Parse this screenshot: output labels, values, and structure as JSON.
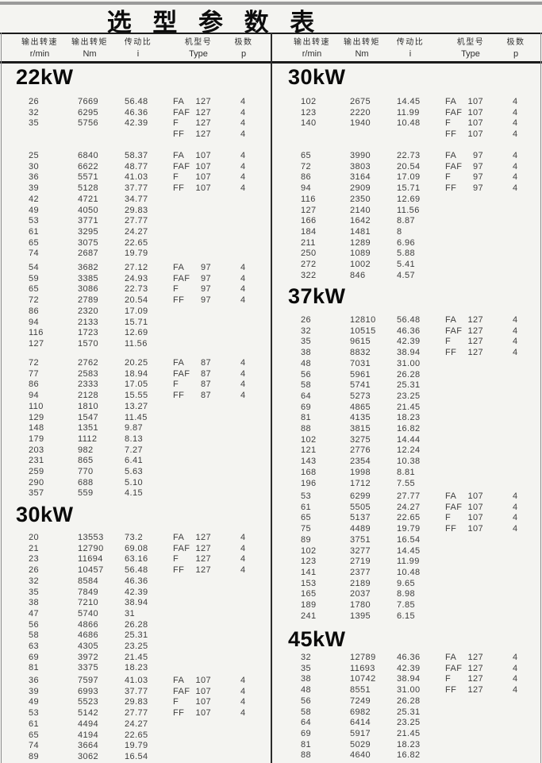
{
  "title": "选 型 参 数 表",
  "header": {
    "columns": [
      {
        "zh": "输出转速",
        "en": "r/min"
      },
      {
        "zh": "输出转矩",
        "en": "Nm"
      },
      {
        "zh": "传动比",
        "en": "i"
      },
      {
        "zh": "机型号",
        "en": "Type"
      },
      {
        "zh": "极数",
        "en": "p"
      }
    ]
  },
  "columns": {
    "left": {
      "sections": [
        {
          "heading": "22kW",
          "blocks": [
            [
              [
                "26",
                "7669",
                "56.48",
                "FA",
                "127",
                "4"
              ],
              [
                "32",
                "6295",
                "46.36",
                "FAF",
                "127",
                "4"
              ],
              [
                "35",
                "5756",
                "42.39",
                "F",
                "127",
                "4"
              ],
              [
                "",
                "",
                "",
                "FF",
                "127",
                "4"
              ]
            ],
            [
              [
                "25",
                "6840",
                "58.37",
                "FA",
                "107",
                "4"
              ],
              [
                "30",
                "6622",
                "48.77",
                "FAF",
                "107",
                "4"
              ],
              [
                "36",
                "5571",
                "41.03",
                "F",
                "107",
                "4"
              ],
              [
                "39",
                "5128",
                "37.77",
                "FF",
                "107",
                "4"
              ],
              [
                "42",
                "4721",
                "34.77",
                "",
                "",
                ""
              ],
              [
                "49",
                "4050",
                "29.83",
                "",
                "",
                ""
              ],
              [
                "53",
                "3771",
                "27.77",
                "",
                "",
                ""
              ],
              [
                "61",
                "3295",
                "24.27",
                "",
                "",
                ""
              ],
              [
                "65",
                "3075",
                "22.65",
                "",
                "",
                ""
              ],
              [
                "74",
                "2687",
                "19.79",
                "",
                "",
                ""
              ]
            ],
            [
              [
                "54",
                "3682",
                "27.12",
                "FA",
                "97",
                "4"
              ],
              [
                "59",
                "3385",
                "24.93",
                "FAF",
                "97",
                "4"
              ],
              [
                "65",
                "3086",
                "22.73",
                "F",
                "97",
                "4"
              ],
              [
                "72",
                "2789",
                "20.54",
                "FF",
                "97",
                "4"
              ],
              [
                "86",
                "2320",
                "17.09",
                "",
                "",
                ""
              ],
              [
                "94",
                "2133",
                "15.71",
                "",
                "",
                ""
              ],
              [
                "116",
                "1723",
                "12.69",
                "",
                "",
                ""
              ],
              [
                "127",
                "1570",
                "11.56",
                "",
                "",
                ""
              ]
            ],
            [
              [
                "72",
                "2762",
                "20.25",
                "FA",
                "87",
                "4"
              ],
              [
                "77",
                "2583",
                "18.94",
                "FAF",
                "87",
                "4"
              ],
              [
                "86",
                "2333",
                "17.05",
                "F",
                "87",
                "4"
              ],
              [
                "94",
                "2128",
                "15.55",
                "FF",
                "87",
                "4"
              ],
              [
                "110",
                "1810",
                "13.27",
                "",
                "",
                ""
              ],
              [
                "129",
                "1547",
                "11.45",
                "",
                "",
                ""
              ],
              [
                "148",
                "1351",
                "9.87",
                "",
                "",
                ""
              ],
              [
                "179",
                "1112",
                "8.13",
                "",
                "",
                ""
              ],
              [
                "203",
                "982",
                "7.27",
                "",
                "",
                ""
              ],
              [
                "231",
                "865",
                "6.41",
                "",
                "",
                ""
              ],
              [
                "259",
                "770",
                "5.63",
                "",
                "",
                ""
              ],
              [
                "290",
                "688",
                "5.10",
                "",
                "",
                ""
              ],
              [
                "357",
                "559",
                "4.15",
                "",
                "",
                ""
              ]
            ]
          ]
        },
        {
          "heading": "30kW",
          "blocks": [
            [
              [
                "20",
                "13553",
                "73.2",
                "FA",
                "127",
                "4"
              ],
              [
                "21",
                "12790",
                "69.08",
                "FAF",
                "127",
                "4"
              ],
              [
                "23",
                "11694",
                "63.16",
                "F",
                "127",
                "4"
              ],
              [
                "26",
                "10457",
                "56.48",
                "FF",
                "127",
                "4"
              ],
              [
                "32",
                "8584",
                "46.36",
                "",
                "",
                ""
              ],
              [
                "35",
                "7849",
                "42.39",
                "",
                "",
                ""
              ],
              [
                "38",
                "7210",
                "38.94",
                "",
                "",
                ""
              ],
              [
                "47",
                "5740",
                "31",
                "",
                "",
                ""
              ],
              [
                "56",
                "4866",
                "26.28",
                "",
                "",
                ""
              ],
              [
                "58",
                "4686",
                "25.31",
                "",
                "",
                ""
              ],
              [
                "63",
                "4305",
                "23.25",
                "",
                "",
                ""
              ],
              [
                "69",
                "3972",
                "21.45",
                "",
                "",
                ""
              ],
              [
                "81",
                "3375",
                "18.23",
                "",
                "",
                ""
              ]
            ],
            [
              [
                "36",
                "7597",
                "41.03",
                "FA",
                "107",
                "4"
              ],
              [
                "39",
                "6993",
                "37.77",
                "FAF",
                "107",
                "4"
              ],
              [
                "49",
                "5523",
                "29.83",
                "F",
                "107",
                "4"
              ],
              [
                "53",
                "5142",
                "27.77",
                "FF",
                "107",
                "4"
              ],
              [
                "61",
                "4494",
                "24.27",
                "",
                "",
                ""
              ],
              [
                "65",
                "4194",
                "22.65",
                "",
                "",
                ""
              ],
              [
                "74",
                "3664",
                "19.79",
                "",
                "",
                ""
              ],
              [
                "89",
                "3062",
                "16.54",
                "",
                "",
                ""
              ]
            ]
          ]
        }
      ]
    },
    "right": {
      "sections": [
        {
          "heading": "30kW",
          "blocks": [
            [
              [
                "102",
                "2675",
                "14.45",
                "FA",
                "107",
                "4"
              ],
              [
                "123",
                "2220",
                "11.99",
                "FAF",
                "107",
                "4"
              ],
              [
                "140",
                "1940",
                "10.48",
                "F",
                "107",
                "4"
              ],
              [
                "",
                "",
                "",
                "FF",
                "107",
                "4"
              ]
            ],
            [
              [
                "65",
                "3990",
                "22.73",
                "FA",
                "97",
                "4"
              ],
              [
                "72",
                "3803",
                "20.54",
                "FAF",
                "97",
                "4"
              ],
              [
                "86",
                "3164",
                "17.09",
                "F",
                "97",
                "4"
              ],
              [
                "94",
                "2909",
                "15.71",
                "FF",
                "97",
                "4"
              ],
              [
                "116",
                "2350",
                "12.69",
                "",
                "",
                ""
              ],
              [
                "127",
                "2140",
                "11.56",
                "",
                "",
                ""
              ],
              [
                "166",
                "1642",
                "8.87",
                "",
                "",
                ""
              ],
              [
                "184",
                "1481",
                "8",
                "",
                "",
                ""
              ],
              [
                "211",
                "1289",
                "6.96",
                "",
                "",
                ""
              ],
              [
                "250",
                "1089",
                "5.88",
                "",
                "",
                ""
              ],
              [
                "272",
                "1002",
                "5.41",
                "",
                "",
                ""
              ],
              [
                "322",
                "846",
                "4.57",
                "",
                "",
                ""
              ]
            ]
          ]
        },
        {
          "heading": "37kW",
          "blocks": [
            [
              [
                "26",
                "12810",
                "56.48",
                "FA",
                "127",
                "4"
              ],
              [
                "32",
                "10515",
                "46.36",
                "FAF",
                "127",
                "4"
              ],
              [
                "35",
                "9615",
                "42.39",
                "F",
                "127",
                "4"
              ],
              [
                "38",
                "8832",
                "38.94",
                "FF",
                "127",
                "4"
              ],
              [
                "48",
                "7031",
                "31.00",
                "",
                "",
                ""
              ],
              [
                "56",
                "5961",
                "26.28",
                "",
                "",
                ""
              ],
              [
                "58",
                "5741",
                "25.31",
                "",
                "",
                ""
              ],
              [
                "64",
                "5273",
                "23.25",
                "",
                "",
                ""
              ],
              [
                "69",
                "4865",
                "21.45",
                "",
                "",
                ""
              ],
              [
                "81",
                "4135",
                "18.23",
                "",
                "",
                ""
              ],
              [
                "88",
                "3815",
                "16.82",
                "",
                "",
                ""
              ],
              [
                "102",
                "3275",
                "14.44",
                "",
                "",
                ""
              ],
              [
                "121",
                "2776",
                "12.24",
                "",
                "",
                ""
              ],
              [
                "143",
                "2354",
                "10.38",
                "",
                "",
                ""
              ],
              [
                "168",
                "1998",
                "8.81",
                "",
                "",
                ""
              ],
              [
                "196",
                "1712",
                "7.55",
                "",
                "",
                ""
              ]
            ],
            [
              [
                "53",
                "6299",
                "27.77",
                "FA",
                "107",
                "4"
              ],
              [
                "61",
                "5505",
                "24.27",
                "FAF",
                "107",
                "4"
              ],
              [
                "65",
                "5137",
                "22.65",
                "F",
                "107",
                "4"
              ],
              [
                "75",
                "4489",
                "19.79",
                "FF",
                "107",
                "4"
              ],
              [
                "89",
                "3751",
                "16.54",
                "",
                "",
                ""
              ],
              [
                "102",
                "3277",
                "14.45",
                "",
                "",
                ""
              ],
              [
                "123",
                "2719",
                "11.99",
                "",
                "",
                ""
              ],
              [
                "141",
                "2377",
                "10.48",
                "",
                "",
                ""
              ],
              [
                "153",
                "2189",
                "9.65",
                "",
                "",
                ""
              ],
              [
                "165",
                "2037",
                "8.98",
                "",
                "",
                ""
              ],
              [
                "189",
                "1780",
                "7.85",
                "",
                "",
                ""
              ],
              [
                "241",
                "1395",
                "6.15",
                "",
                "",
                ""
              ]
            ]
          ]
        },
        {
          "heading": "45kW",
          "blocks": [
            [
              [
                "32",
                "12789",
                "46.36",
                "FA",
                "127",
                "4"
              ],
              [
                "35",
                "11693",
                "42.39",
                "FAF",
                "127",
                "4"
              ],
              [
                "38",
                "10742",
                "38.94",
                "F",
                "127",
                "4"
              ],
              [
                "48",
                "8551",
                "31.00",
                "FF",
                "127",
                "4"
              ],
              [
                "56",
                "7249",
                "26.28",
                "",
                "",
                ""
              ],
              [
                "58",
                "6982",
                "25.31",
                "",
                "",
                ""
              ],
              [
                "64",
                "6414",
                "23.25",
                "",
                "",
                ""
              ],
              [
                "69",
                "5917",
                "21.45",
                "",
                "",
                ""
              ],
              [
                "81",
                "5029",
                "18.23",
                "",
                "",
                ""
              ],
              [
                "88",
                "4640",
                "16.82",
                "",
                "",
                ""
              ]
            ]
          ]
        }
      ]
    }
  }
}
